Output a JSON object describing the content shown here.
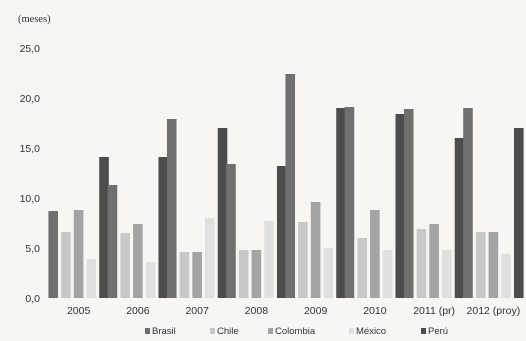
{
  "chart_data": {
    "type": "bar",
    "unit_label": "(meses)",
    "categories": [
      "2005",
      "2006",
      "2007",
      "2008",
      "2009",
      "2010",
      "2011 (pr)",
      "2012 (proy)"
    ],
    "series": [
      {
        "name": "Brasil",
        "color": "#707070",
        "values": [
          8.7,
          11.3,
          17.9,
          13.4,
          22.4,
          19.1,
          18.9,
          19.0
        ]
      },
      {
        "name": "Chile",
        "color": "#c8c8c8",
        "values": [
          6.6,
          6.5,
          4.6,
          4.8,
          7.6,
          6.0,
          6.9,
          6.6
        ]
      },
      {
        "name": "Colombia",
        "color": "#a3a3a3",
        "values": [
          8.8,
          7.4,
          4.6,
          4.8,
          9.6,
          8.8,
          7.4,
          6.6
        ]
      },
      {
        "name": "México",
        "color": "#e0e0e0",
        "values": [
          3.9,
          3.6,
          8.0,
          7.7,
          5.0,
          4.8,
          4.8,
          4.4
        ]
      },
      {
        "name": "Perú",
        "color": "#4c4c4c",
        "values": [
          14.1,
          14.1,
          17.0,
          13.2,
          19.0,
          18.4,
          16.0,
          17.0
        ]
      }
    ],
    "yticks": [
      "0,0",
      "5,0",
      "10,0",
      "15,0",
      "20,0",
      "25,0"
    ],
    "ylim": [
      0,
      25
    ],
    "grid": false,
    "legend_position": "bottom"
  }
}
